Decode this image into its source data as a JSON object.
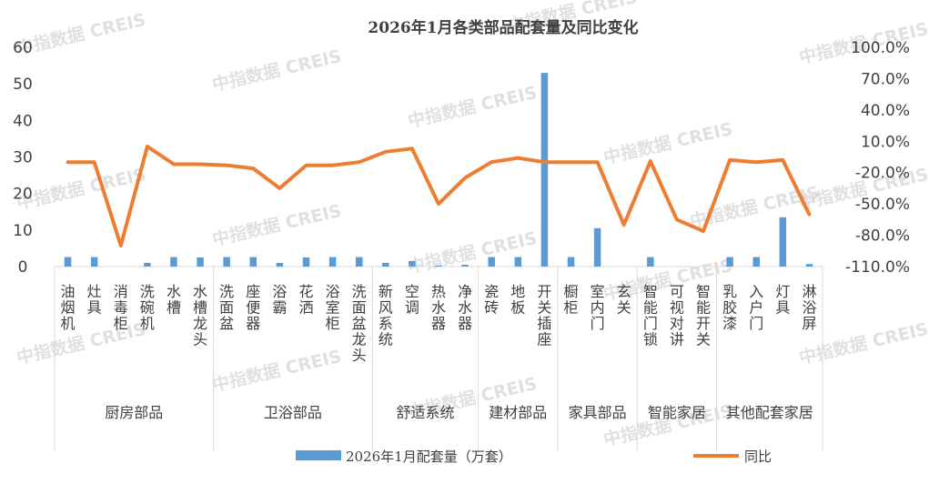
{
  "watermark": "中指数据 CREIS",
  "chart_data": {
    "type": "bar",
    "title": "2026年1月各类部品配套量及同比变化",
    "categories": [
      "油烟机",
      "灶具",
      "消毒柜",
      "洗碗机",
      "水槽",
      "水槽龙头",
      "洗面盆",
      "座便器",
      "浴霸",
      "花洒",
      "浴室柜",
      "洗面盆龙头",
      "新风系统",
      "空调",
      "热水器",
      "净水器",
      "瓷砖",
      "地板",
      "开关插座",
      "橱柜",
      "室内门",
      "玄关",
      "智能门锁",
      "可视对讲",
      "智能开关",
      "乳胶漆",
      "入户门",
      "灯具",
      "淋浴屏"
    ],
    "groups": [
      {
        "label": "厨房部品",
        "start": 0,
        "end": 5
      },
      {
        "label": "卫浴部品",
        "start": 6,
        "end": 11
      },
      {
        "label": "舒适系统",
        "start": 12,
        "end": 15
      },
      {
        "label": "建材部品",
        "start": 16,
        "end": 18
      },
      {
        "label": "家具部品",
        "start": 19,
        "end": 21
      },
      {
        "label": "智能家居",
        "start": 22,
        "end": 24
      },
      {
        "label": "其他配套家居",
        "start": 25,
        "end": 28
      }
    ],
    "series": [
      {
        "name": "2026年1月配套量（万套）",
        "type": "bar",
        "axis": "left",
        "color": "#5b9bd5",
        "values": [
          2.6,
          2.6,
          0.0,
          1.0,
          2.6,
          2.5,
          2.6,
          2.6,
          1.0,
          2.5,
          2.6,
          2.6,
          1.0,
          1.5,
          0.3,
          0.5,
          2.6,
          2.6,
          53.0,
          2.6,
          10.5,
          0.0,
          2.6,
          0.0,
          0.0,
          2.6,
          2.6,
          13.5,
          0.7
        ]
      },
      {
        "name": "同比",
        "type": "line",
        "axis": "right",
        "color": "#ed7d31",
        "values": [
          -10.0,
          -10.0,
          -90.0,
          5.0,
          -12.0,
          -12.0,
          -13.0,
          -16.0,
          -35.0,
          -13.0,
          -13.0,
          -10.0,
          0.0,
          3.0,
          -50.0,
          -25.0,
          -10.0,
          -6.0,
          -10.0,
          -10.0,
          -10.0,
          -70.0,
          -9.0,
          -65.0,
          -76.0,
          -8.0,
          -10.0,
          -8.0,
          -60.0
        ]
      }
    ],
    "y_left": {
      "min": 0,
      "max": 60,
      "ticks": [
        "60",
        "50",
        "40",
        "30",
        "20",
        "10",
        "0"
      ]
    },
    "y_right": {
      "min": -110,
      "max": 100,
      "ticks": [
        "100.0%",
        "70.0%",
        "40.0%",
        "10.0%",
        "-20.0%",
        "-50.0%",
        "-80.0%",
        "-110.0%"
      ]
    },
    "legend": {
      "position": "bottom",
      "bar_label": "2026年1月配套量（万套）",
      "line_label": "同比"
    },
    "grid": false
  }
}
